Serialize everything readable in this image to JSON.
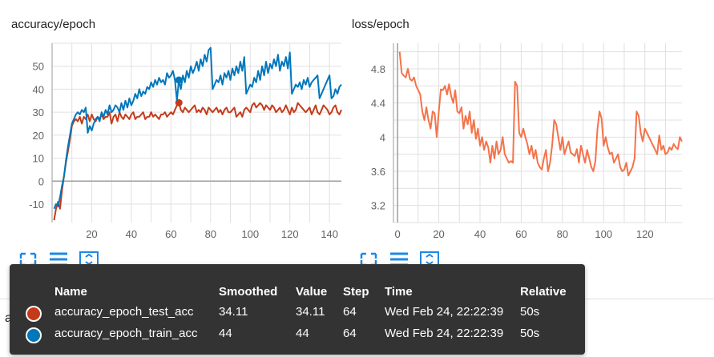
{
  "chart_data": [
    {
      "type": "line",
      "title": "accuracy/epoch",
      "x_range": [
        0,
        146
      ],
      "ylim": [
        -18,
        60
      ],
      "x_ticks": [
        20,
        40,
        60,
        80,
        100,
        120,
        140
      ],
      "y_ticks": [
        50,
        40,
        30,
        20,
        10,
        0,
        -10
      ],
      "series": [
        {
          "name": "accuracy_epoch_test_acc",
          "color": "#c43b1b",
          "x": [
            1,
            2,
            3,
            4,
            5,
            6,
            7,
            8,
            9,
            10,
            11,
            12,
            13,
            14,
            15,
            16,
            17,
            18,
            19,
            20,
            21,
            22,
            23,
            24,
            25,
            26,
            27,
            28,
            29,
            30,
            31,
            32,
            33,
            34,
            35,
            36,
            37,
            38,
            39,
            40,
            41,
            42,
            43,
            44,
            45,
            46,
            47,
            48,
            49,
            50,
            51,
            52,
            53,
            54,
            55,
            56,
            57,
            58,
            59,
            60,
            61,
            62,
            63,
            64,
            65,
            66,
            67,
            68,
            69,
            70,
            71,
            72,
            73,
            74,
            75,
            76,
            77,
            78,
            79,
            80,
            81,
            82,
            83,
            84,
            85,
            86,
            87,
            88,
            89,
            90,
            91,
            92,
            93,
            94,
            95,
            96,
            97,
            98,
            99,
            100,
            101,
            102,
            103,
            104,
            105,
            106,
            107,
            108,
            109,
            110,
            111,
            112,
            113,
            114,
            115,
            116,
            117,
            118,
            119,
            120,
            121,
            122,
            123,
            124,
            125,
            126,
            127,
            128,
            129,
            130,
            131,
            132,
            133,
            134,
            135,
            136,
            137,
            138,
            139,
            140,
            141,
            142,
            143,
            144,
            145,
            146
          ],
          "y": [
            -17,
            -12,
            -9,
            -12,
            -4,
            2,
            8,
            13,
            18,
            24,
            26,
            27,
            26,
            28,
            25,
            28,
            27,
            29,
            26,
            29,
            27,
            26,
            28,
            27,
            29,
            27,
            28,
            28,
            30,
            25,
            28,
            29,
            26,
            30,
            28,
            27,
            29,
            28,
            27,
            29,
            30,
            27,
            28,
            28,
            29,
            30,
            27,
            28,
            28,
            30,
            28,
            29,
            28,
            27,
            29,
            29,
            30,
            28,
            29,
            30,
            29,
            31,
            33,
            34.11,
            31,
            30,
            32,
            31,
            30,
            31,
            32,
            33,
            30,
            31,
            30,
            32,
            31,
            29,
            32,
            31,
            30,
            31,
            32,
            30,
            31,
            29,
            31,
            32,
            30,
            30,
            31,
            32,
            28,
            29,
            30,
            28,
            31,
            32,
            31,
            30,
            33,
            34,
            32,
            33,
            34,
            33,
            31,
            33,
            32,
            31,
            33,
            32,
            30,
            31,
            32,
            30,
            31,
            33,
            31,
            29,
            32,
            30,
            31,
            34,
            33,
            32,
            31,
            30,
            31,
            32,
            29,
            31,
            33,
            30,
            29,
            31,
            33,
            32,
            31,
            29,
            30,
            32,
            33,
            30,
            29,
            31
          ]
        },
        {
          "name": "accuracy_epoch_train_acc",
          "color": "#0077bb",
          "x": [
            1,
            2,
            3,
            4,
            5,
            6,
            7,
            8,
            9,
            10,
            11,
            12,
            13,
            14,
            15,
            16,
            17,
            18,
            19,
            20,
            21,
            22,
            23,
            24,
            25,
            26,
            27,
            28,
            29,
            30,
            31,
            32,
            33,
            34,
            35,
            36,
            37,
            38,
            39,
            40,
            41,
            42,
            43,
            44,
            45,
            46,
            47,
            48,
            49,
            50,
            51,
            52,
            53,
            54,
            55,
            56,
            57,
            58,
            59,
            60,
            61,
            62,
            63,
            64,
            65,
            66,
            67,
            68,
            69,
            70,
            71,
            72,
            73,
            74,
            75,
            76,
            77,
            78,
            79,
            80,
            81,
            82,
            83,
            84,
            85,
            86,
            87,
            88,
            89,
            90,
            91,
            92,
            93,
            94,
            95,
            96,
            97,
            98,
            99,
            100,
            101,
            102,
            103,
            104,
            105,
            106,
            107,
            108,
            109,
            110,
            111,
            112,
            113,
            114,
            115,
            116,
            117,
            118,
            119,
            120,
            121,
            122,
            123,
            124,
            125,
            126,
            127,
            128,
            129,
            130,
            131,
            132,
            133,
            134,
            135,
            136,
            137,
            138,
            139,
            140,
            141,
            142,
            143,
            144,
            145,
            146
          ],
          "y": [
            -12,
            -10,
            -11,
            -7,
            -2,
            2,
            9,
            15,
            20,
            25,
            27,
            29,
            30,
            29,
            31,
            30,
            32,
            21,
            24,
            22,
            25,
            27,
            28,
            26,
            30,
            28,
            31,
            29,
            33,
            30,
            31,
            33,
            32,
            30,
            34,
            31,
            35,
            32,
            36,
            33,
            35,
            38,
            36,
            40,
            37,
            39,
            38,
            41,
            40,
            43,
            41,
            44,
            42,
            45,
            43,
            44,
            42,
            47,
            45,
            46,
            48,
            44,
            35,
            44,
            40,
            46,
            43,
            48,
            45,
            50,
            47,
            49,
            52,
            48,
            53,
            50,
            55,
            52,
            57,
            58,
            40,
            42,
            44,
            43,
            46,
            42,
            47,
            45,
            48,
            44,
            49,
            46,
            50,
            47,
            52,
            48,
            54,
            38,
            40,
            42,
            41,
            45,
            43,
            48,
            44,
            50,
            46,
            52,
            47,
            51,
            49,
            53,
            50,
            55,
            48,
            52,
            50,
            54,
            49,
            56,
            38,
            40,
            42,
            41,
            43,
            40,
            44,
            42,
            45,
            41,
            43,
            44,
            45,
            46,
            36,
            38,
            40,
            42,
            44,
            46,
            36,
            37,
            40,
            38,
            41,
            42
          ]
        }
      ],
      "highlight_x": 64
    },
    {
      "type": "line",
      "title": "loss/epoch",
      "x_range": [
        -2,
        138
      ],
      "ylim": [
        3.0,
        5.1
      ],
      "x_ticks": [
        0,
        20,
        40,
        60,
        80,
        100,
        120
      ],
      "y_ticks": [
        4.8,
        4.4,
        4,
        3.6,
        3.2
      ],
      "y_tick_labels": [
        "4.8",
        "4.4",
        "4",
        "3.6",
        "3.2"
      ],
      "series": [
        {
          "name": "loss_epoch",
          "color": "#f4734a",
          "x": [
            1,
            2,
            3,
            4,
            5,
            6,
            7,
            8,
            9,
            10,
            11,
            12,
            13,
            14,
            15,
            16,
            17,
            18,
            19,
            20,
            21,
            22,
            23,
            24,
            25,
            26,
            27,
            28,
            29,
            30,
            31,
            32,
            33,
            34,
            35,
            36,
            37,
            38,
            39,
            40,
            41,
            42,
            43,
            44,
            45,
            46,
            47,
            48,
            49,
            50,
            51,
            52,
            53,
            54,
            55,
            56,
            57,
            58,
            59,
            60,
            61,
            62,
            63,
            64,
            65,
            66,
            67,
            68,
            69,
            70,
            71,
            72,
            73,
            74,
            75,
            76,
            77,
            78,
            79,
            80,
            81,
            82,
            83,
            84,
            85,
            86,
            87,
            88,
            89,
            90,
            91,
            92,
            93,
            94,
            95,
            96,
            97,
            98,
            99,
            100,
            101,
            102,
            103,
            104,
            105,
            106,
            107,
            108,
            109,
            110,
            111,
            112,
            113,
            114,
            115,
            116,
            117,
            118,
            119,
            120,
            121,
            122,
            123,
            124,
            125,
            126,
            127,
            128,
            129,
            130,
            131,
            132,
            133,
            134,
            135,
            136,
            137,
            138
          ],
          "y": [
            5.0,
            4.75,
            4.72,
            4.7,
            4.8,
            4.68,
            4.66,
            4.7,
            4.6,
            4.55,
            4.5,
            4.3,
            4.2,
            4.35,
            4.2,
            4.1,
            4.3,
            4.28,
            4.0,
            4.3,
            4.56,
            4.55,
            4.6,
            4.5,
            4.62,
            4.48,
            4.4,
            4.55,
            4.3,
            4.28,
            4.35,
            4.1,
            4.25,
            4.15,
            4.3,
            4.05,
            4.2,
            3.98,
            4.1,
            3.9,
            4.0,
            3.85,
            3.95,
            3.88,
            3.7,
            3.9,
            3.75,
            3.95,
            3.8,
            3.85,
            4.0,
            3.8,
            3.75,
            3.7,
            3.72,
            3.7,
            4.65,
            4.6,
            4.05,
            4.0,
            4.1,
            4.0,
            3.92,
            3.8,
            3.9,
            3.75,
            3.85,
            3.7,
            3.65,
            3.62,
            3.75,
            3.85,
            3.6,
            3.7,
            3.9,
            4.2,
            4.15,
            4.0,
            3.85,
            4.0,
            3.8,
            3.88,
            3.95,
            3.82,
            3.8,
            3.78,
            3.86,
            3.7,
            3.9,
            3.8,
            3.7,
            3.85,
            3.75,
            3.65,
            3.6,
            3.72,
            4.1,
            4.3,
            4.22,
            3.9,
            4.0,
            3.88,
            3.8,
            3.82,
            3.7,
            3.75,
            3.8,
            3.65,
            3.6,
            3.62,
            3.7,
            3.55,
            3.6,
            3.65,
            3.75,
            4.3,
            4.25,
            4.05,
            3.95,
            4.1,
            4.05,
            4.0,
            3.95,
            3.9,
            3.85,
            3.8,
            4.02,
            3.85,
            3.9,
            3.8,
            3.82,
            3.88,
            3.85,
            3.92,
            3.88,
            3.86,
            4.0,
            3.95
          ]
        }
      ]
    }
  ],
  "icon_groups": [
    [
      "fullscreen-icon",
      "lines-icon",
      "fit-domain-icon"
    ],
    [
      "fullscreen-icon",
      "lines-icon",
      "fit-domain-icon"
    ]
  ],
  "section": {
    "label": "accuracy"
  },
  "tooltip": {
    "headers": {
      "name": "Name",
      "smoothed": "Smoothed",
      "value": "Value",
      "step": "Step",
      "time": "Time",
      "relative": "Relative"
    },
    "rows": [
      {
        "color": "#c43b1b",
        "name": "accuracy_epoch_test_acc",
        "smoothed": "34.11",
        "value": "34.11",
        "step": "64",
        "time": "Wed Feb 24, 22:22:39",
        "relative": "50s"
      },
      {
        "color": "#0077bb",
        "name": "accuracy_epoch_train_acc",
        "smoothed": "44",
        "value": "44",
        "step": "64",
        "time": "Wed Feb 24, 22:22:39",
        "relative": "50s"
      }
    ]
  },
  "colors": {
    "icon_blue": "#1e88e5",
    "tooltip_bg": "#333333"
  }
}
